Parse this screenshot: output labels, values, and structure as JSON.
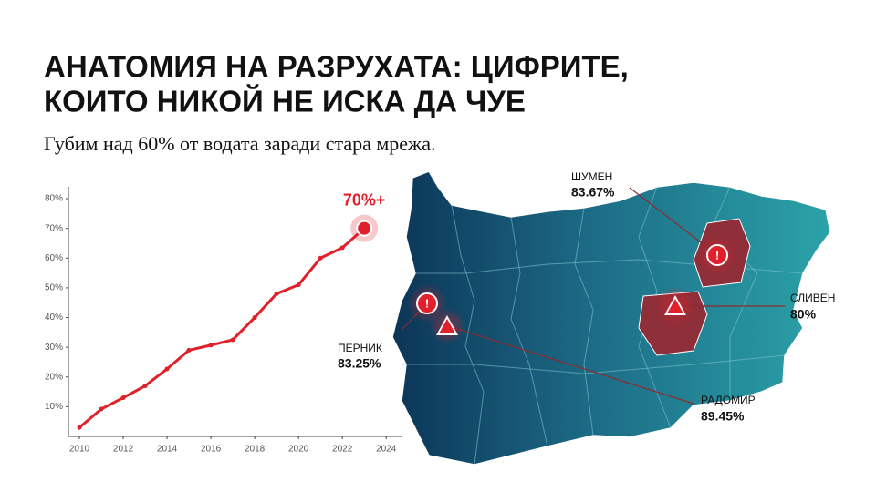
{
  "header": {
    "title_lines": [
      "АНАТОМИЯ НА РАЗРУХАТА: ЦИФРИТЕ,",
      "КОИТО НИКОЙ НЕ ИСКА ДА ЧУЕ"
    ],
    "subtitle": "Губим над 60% от водата заради стара мрежа."
  },
  "chart_data": {
    "type": "line",
    "x": [
      2010,
      2011,
      2012,
      2013,
      2014,
      2015,
      2016,
      2017,
      2018,
      2019,
      2020,
      2021,
      2022,
      2023
    ],
    "values": [
      3,
      9.2,
      13,
      17,
      22.7,
      29,
      30.7,
      32.5,
      40,
      48,
      51,
      60,
      63.5,
      70
    ],
    "color": "#e0202a",
    "annotation": "70%+",
    "xlim": [
      2009.5,
      2024.7
    ],
    "xticks": [
      2010,
      2012,
      2014,
      2016,
      2018,
      2020,
      2022,
      2024
    ],
    "ylim": [
      0,
      84
    ],
    "yticks": [
      {
        "value": 10,
        "label": "10%"
      },
      {
        "value": 20,
        "label": "20%"
      },
      {
        "value": 30,
        "label": "30%"
      },
      {
        "value": 40,
        "label": "40%"
      },
      {
        "value": 50,
        "label": "50%"
      },
      {
        "value": 60,
        "label": "60%"
      },
      {
        "value": 70,
        "label": "70%"
      },
      {
        "value": 80,
        "label": "80%"
      }
    ],
    "grid": false
  },
  "map": {
    "callouts": [
      {
        "name": "ШУМЕН",
        "value": "83.67%"
      },
      {
        "name": "СЛИВЕН",
        "value": "80%"
      },
      {
        "name": "ПЕРНИК",
        "value": "83.25%"
      },
      {
        "name": "РАДОМИР",
        "value": "89.45%"
      }
    ]
  }
}
